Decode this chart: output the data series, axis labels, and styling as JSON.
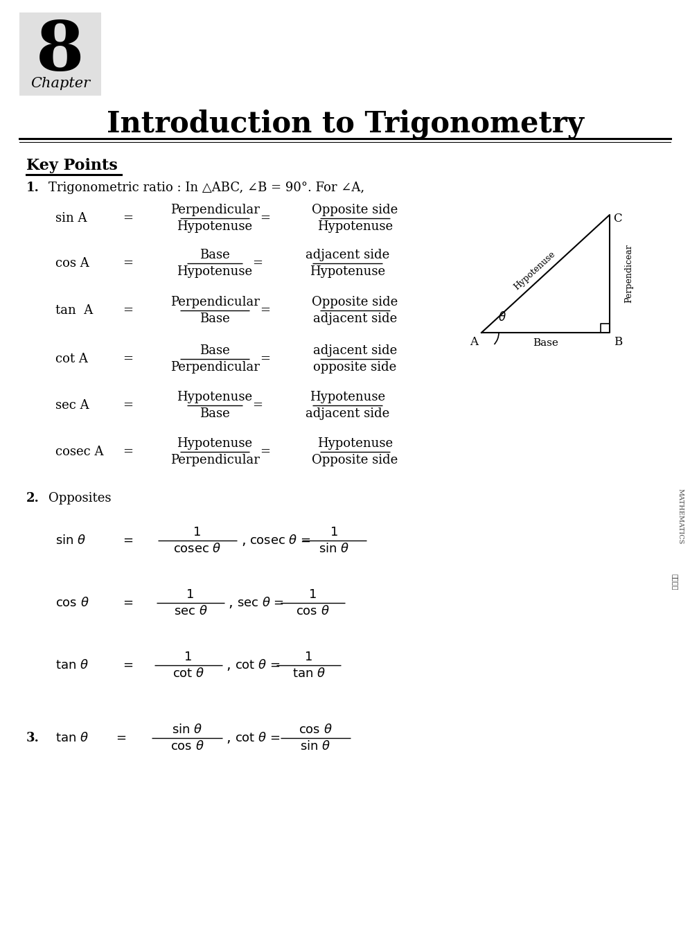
{
  "bg_color": "#ffffff",
  "chapter_num": "8",
  "chapter_label": "Chapter",
  "title": "Introduction to Trigonometry",
  "section_label": "Key Points",
  "point1_text": "Trigonometric ratio : In △ABC, ∠B = 90°. For ∠A,",
  "point2_text": "Opposites",
  "fig_width": 9.96,
  "fig_height": 13.55,
  "dpi": 100
}
